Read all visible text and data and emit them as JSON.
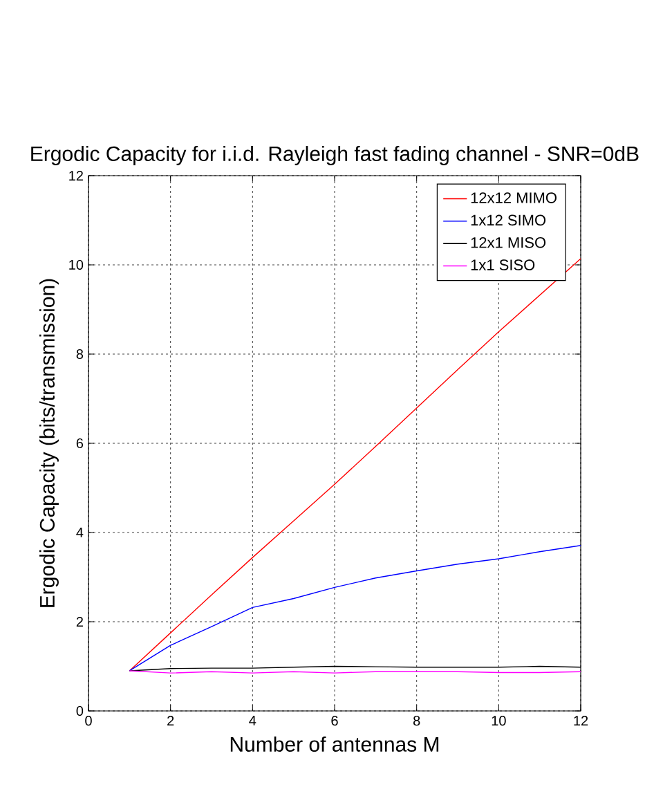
{
  "chart_data": {
    "type": "line",
    "title": "Ergodic Capacity for i.i.d. Rayleigh fast fading channel - SNR=0dB",
    "xlabel": "Number of antennas M",
    "ylabel": "Ergodic Capacity (bits/transmission)",
    "x": [
      1,
      2,
      3,
      4,
      5,
      6,
      7,
      8,
      9,
      10,
      11,
      12
    ],
    "series": [
      {
        "name": "12x12 MIMO",
        "color": "#ff0000",
        "values": [
          0.9,
          1.75,
          2.6,
          3.44,
          4.26,
          5.08,
          5.93,
          6.79,
          7.65,
          8.5,
          9.32,
          10.14
        ]
      },
      {
        "name": "1x12 SIMO",
        "color": "#0000ff",
        "values": [
          0.9,
          1.47,
          1.89,
          2.32,
          2.52,
          2.77,
          2.98,
          3.14,
          3.29,
          3.41,
          3.57,
          3.71
        ]
      },
      {
        "name": "12x1 MISO",
        "color": "#000000",
        "values": [
          0.9,
          0.95,
          0.96,
          0.96,
          0.98,
          1.0,
          0.99,
          0.98,
          0.98,
          0.98,
          1.0,
          0.98
        ]
      },
      {
        "name": "1x1 SISO",
        "color": "#ff00ff",
        "values": [
          0.9,
          0.85,
          0.88,
          0.85,
          0.88,
          0.85,
          0.88,
          0.88,
          0.88,
          0.86,
          0.86,
          0.88
        ]
      }
    ],
    "xlim": [
      0,
      12
    ],
    "ylim": [
      0,
      12
    ],
    "xticks": [
      0,
      2,
      4,
      6,
      8,
      10,
      12
    ],
    "yticks": [
      0,
      2,
      4,
      6,
      8,
      10,
      12
    ],
    "grid": true,
    "legend": "top right",
    "line_style": "solid"
  }
}
